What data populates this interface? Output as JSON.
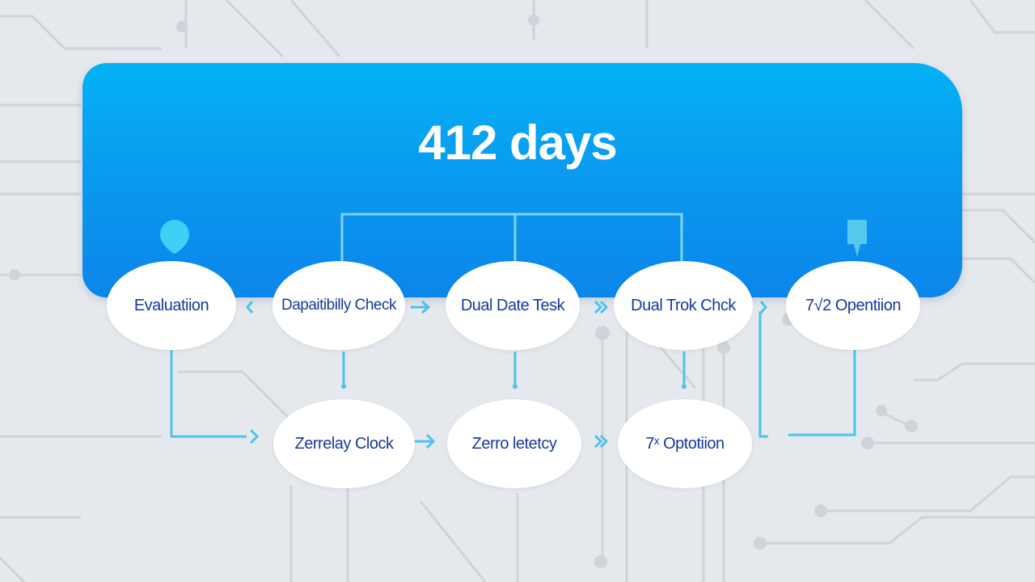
{
  "header": {
    "title": "412 days"
  },
  "nodes_top": [
    {
      "label": "Evaluatiion"
    },
    {
      "label": "Dapaitibilly Check"
    },
    {
      "label": "Dual Date Tesk"
    },
    {
      "label": "Dual Trok Chck"
    },
    {
      "label": "7√2 Opentiion"
    }
  ],
  "nodes_bottom": [
    {
      "label": "Zerrelay Clock"
    },
    {
      "label": "Zerro letetcy"
    },
    {
      "label": "7ˣ Optotiion"
    }
  ],
  "colors": {
    "banner": "#0a99ef",
    "connector": "#4cc3ec",
    "text": "#173a9b",
    "background": "#e5e8ec"
  }
}
